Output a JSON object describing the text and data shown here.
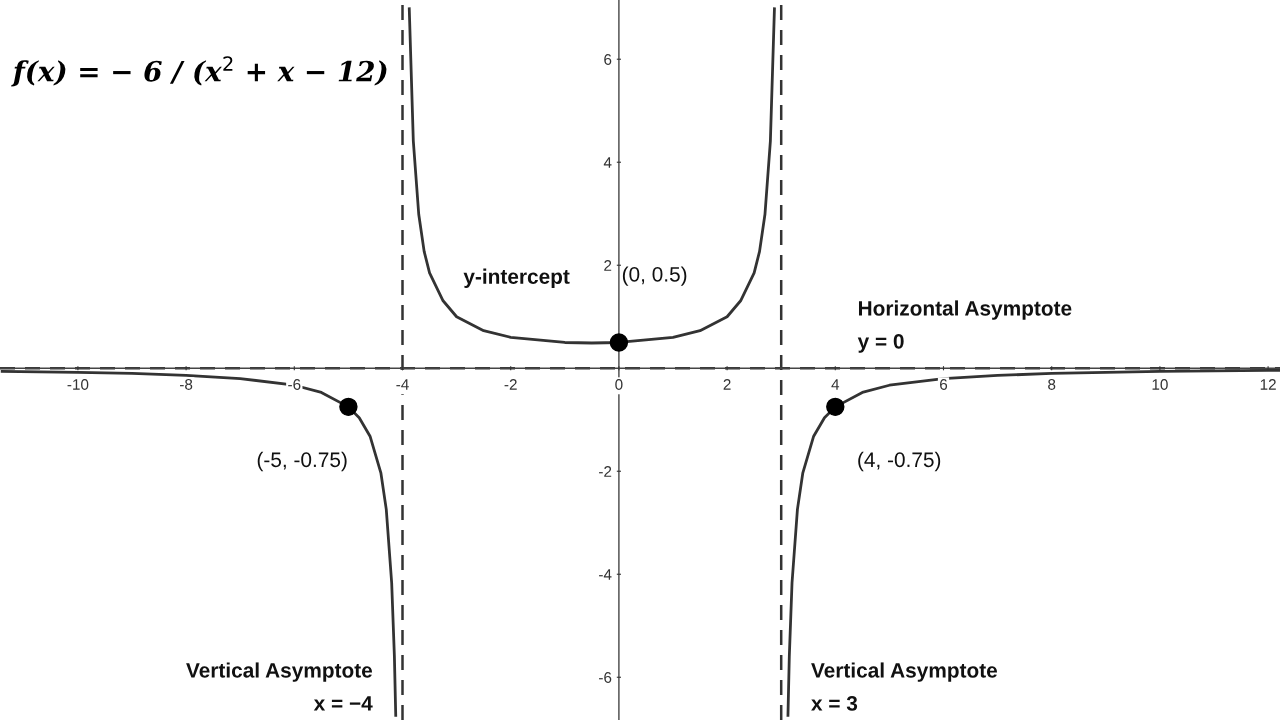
{
  "chart_data": {
    "type": "line",
    "title": "f(x) = − 6 / (x$^{2}$ + x − 12)",
    "xlim": [
      -11.44,
      12.22
    ],
    "ylim": [
      -6.83,
      7.15
    ],
    "xticks": [
      -10,
      -8,
      -6,
      -4,
      -2,
      {
        "value": 0,
        "label": "0"
      },
      2,
      4,
      6,
      8,
      10,
      12
    ],
    "yticks": [
      -6,
      -4,
      -2,
      2,
      4,
      6
    ],
    "series": [
      {
        "color": "#333333",
        "line_style": "solid",
        "marker": "none",
        "x": [
          -11.4,
          -10,
          -9,
          -8,
          -7,
          -6,
          -5.5,
          -5,
          -4.8,
          -4.6,
          -4.4,
          -4.3,
          -4.2,
          -4.15,
          -4.125
        ],
        "values": [
          -0.06,
          -0.08,
          -0.1,
          -0.14,
          -0.2,
          -0.33,
          -0.47,
          -0.75,
          -0.96,
          -1.32,
          -2.03,
          -2.74,
          -4.17,
          -5.59,
          -6.74
        ]
      },
      {
        "color": "#333333",
        "line_style": "solid",
        "marker": "none",
        "x": [
          -3.875,
          -3.8,
          -3.7,
          -3.6,
          -3.5,
          -3.25,
          -3,
          -2.5,
          -2,
          -1,
          -0.5,
          0,
          1,
          1.5,
          2,
          2.25,
          2.5,
          2.6,
          2.7,
          2.8,
          2.875
        ],
        "values": [
          6.98,
          4.41,
          2.99,
          2.27,
          1.85,
          1.31,
          1,
          0.73,
          0.6,
          0.5,
          0.49,
          0.5,
          0.6,
          0.73,
          1,
          1.31,
          1.85,
          2.27,
          2.99,
          4.41,
          6.98
        ]
      },
      {
        "color": "#333333",
        "line_style": "solid",
        "marker": "none",
        "x": [
          3.125,
          3.15,
          3.2,
          3.3,
          3.4,
          3.6,
          3.8,
          4,
          4.5,
          5,
          6,
          7,
          8,
          10,
          12,
          12.2
        ],
        "values": [
          -6.74,
          -5.59,
          -4.17,
          -2.74,
          -2.03,
          -1.32,
          -0.96,
          -0.75,
          -0.47,
          -0.33,
          -0.2,
          -0.14,
          -0.1,
          -0.06,
          -0.04,
          -0.04
        ]
      },
      {
        "type": "scatter",
        "color": "#000000",
        "marker": "circle",
        "x": [
          -5,
          0,
          4
        ],
        "values": [
          -0.75,
          0.5,
          -0.75
        ]
      }
    ],
    "ref_lines": [
      {
        "axis": "x",
        "value": -4,
        "label": "Vertical Asymptote\nx = −4",
        "color": "#333333",
        "line_style": "dashed"
      },
      {
        "axis": "x",
        "value": 3,
        "label": "Vertical Asymptote\nx = 3",
        "color": "#333333",
        "line_style": "dashed"
      },
      {
        "axis": "y",
        "value": 0,
        "label": "Horizontal Asymptote\ny = 0",
        "color": "#333333",
        "line_style": "dashed"
      }
    ],
    "annotations": [
      {
        "text": "(-5, -0.75)",
        "x": -5,
        "y": -0.75
      },
      "y-intercept",
      {
        "text": "(0, 0.5)",
        "x": 0,
        "y": 0.5
      },
      {
        "text": "(4, -0.75)",
        "x": 4,
        "y": -0.75
      }
    ]
  }
}
